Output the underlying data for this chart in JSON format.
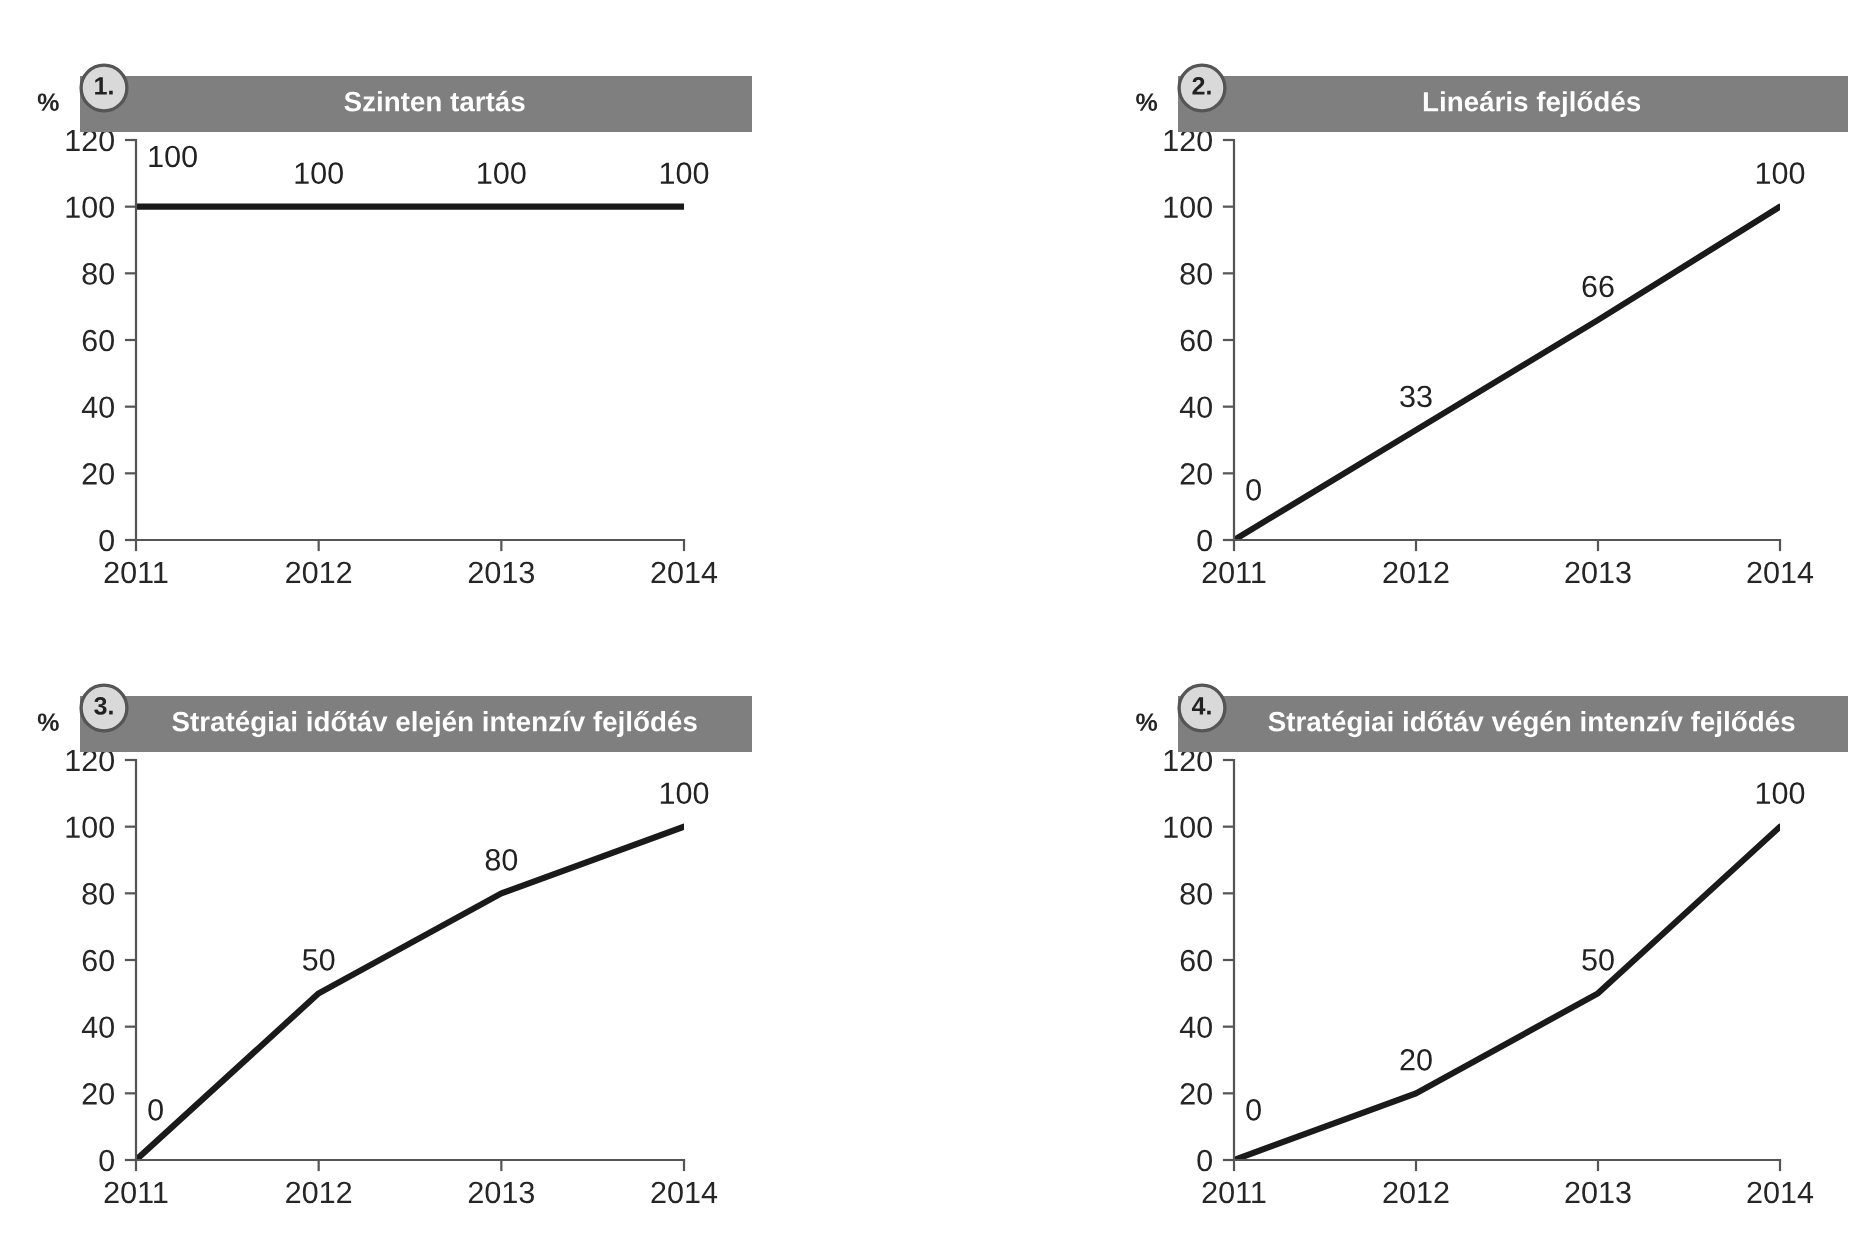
{
  "chart_data": [
    {
      "type": "line",
      "title": "Szinten tartás",
      "annotations": [
        "1."
      ],
      "ylabel": "%",
      "x": [
        2011,
        2012,
        2013,
        2014
      ],
      "series": [
        {
          "color": "#1a1a1a",
          "values": [
            100,
            100,
            100,
            100
          ]
        }
      ],
      "xlim": [
        2011,
        2014
      ],
      "xticks": [
        2011,
        2012,
        2013,
        2014
      ],
      "ylim": [
        0,
        120
      ],
      "yticks": [
        0,
        20,
        40,
        60,
        80,
        100,
        120
      ],
      "data_labels": true,
      "grid": false,
      "marker": "none",
      "line_style": "solid"
    },
    {
      "type": "line",
      "title": "Lineáris fejlődés",
      "annotations": [
        "2."
      ],
      "ylabel": "%",
      "x": [
        2011,
        2012,
        2013,
        2014
      ],
      "series": [
        {
          "color": "#1a1a1a",
          "values": [
            0,
            33,
            66,
            100
          ]
        }
      ],
      "xlim": [
        2011,
        2014
      ],
      "xticks": [
        2011,
        2012,
        2013,
        2014
      ],
      "ylim": [
        0,
        120
      ],
      "yticks": [
        0,
        20,
        40,
        60,
        80,
        100,
        120
      ],
      "data_labels": true,
      "grid": false,
      "marker": "none",
      "line_style": "solid"
    },
    {
      "type": "line",
      "title": "Stratégiai időtáv elején intenzív fejlődés",
      "annotations": [
        "3."
      ],
      "ylabel": "%",
      "x": [
        2011,
        2012,
        2013,
        2014
      ],
      "series": [
        {
          "color": "#1a1a1a",
          "values": [
            0,
            50,
            80,
            100
          ]
        }
      ],
      "xlim": [
        2011,
        2014
      ],
      "xticks": [
        2011,
        2012,
        2013,
        2014
      ],
      "ylim": [
        0,
        120
      ],
      "yticks": [
        0,
        20,
        40,
        60,
        80,
        100,
        120
      ],
      "data_labels": true,
      "grid": false,
      "marker": "none",
      "line_style": "solid"
    },
    {
      "type": "line",
      "title": "Stratégiai időtáv végén intenzív fejlődés",
      "annotations": [
        "4."
      ],
      "ylabel": "%",
      "x": [
        2011,
        2012,
        2013,
        2014
      ],
      "series": [
        {
          "color": "#1a1a1a",
          "values": [
            0,
            20,
            50,
            100
          ]
        }
      ],
      "xlim": [
        2011,
        2014
      ],
      "xticks": [
        2011,
        2012,
        2013,
        2014
      ],
      "ylim": [
        0,
        120
      ],
      "yticks": [
        0,
        20,
        40,
        60,
        80,
        100,
        120
      ],
      "data_labels": true,
      "grid": false,
      "marker": "none",
      "line_style": "solid"
    }
  ]
}
